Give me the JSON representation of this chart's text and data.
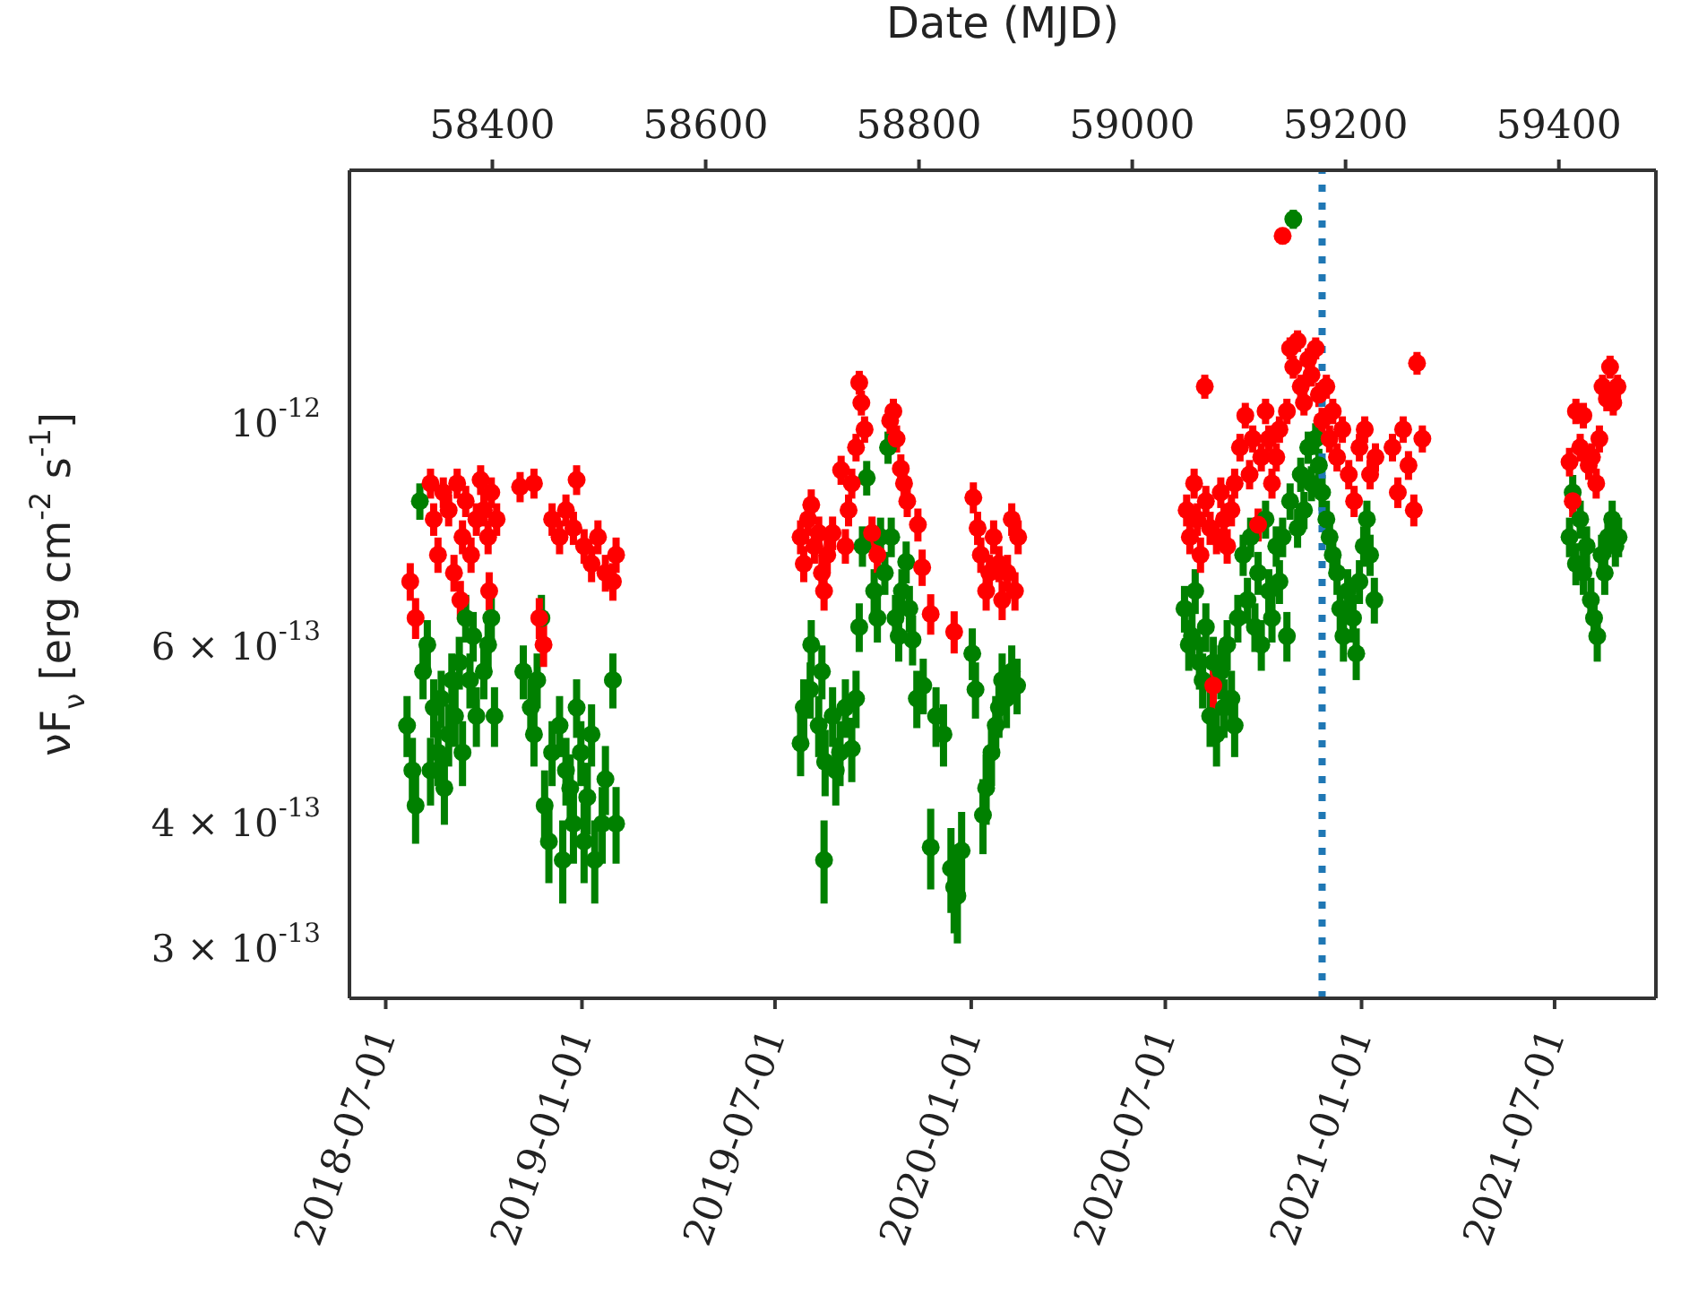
{
  "chart_data": {
    "type": "scatter",
    "x2label": "Date (MJD)",
    "ylabel": "νF$_{ν}$ [erg cm$^{-2}$ s$^{-1}$]",
    "xlim": [
      "2018-05-28",
      "2021-10-04"
    ],
    "xticks": [
      "2018-07-01",
      "2019-01-01",
      "2019-07-01",
      "2020-01-01",
      "2020-07-01",
      "2021-01-01",
      "2021-07-01"
    ],
    "x2lim": [
      58266,
      59491
    ],
    "x2ticks": [
      58400,
      58600,
      58800,
      59000,
      59200,
      59400
    ],
    "ylim": [
      2.68e-13,
      1.79e-12
    ],
    "yticks": [
      {
        "value": 3e-13,
        "label": "3 × 10$^{-13}$"
      },
      {
        "value": 4e-13,
        "label": "4 × 10$^{-13}$"
      },
      {
        "value": 6e-13,
        "label": "6 × 10$^{-13}$"
      },
      {
        "value": 1e-12,
        "label": "10$^{-12}$"
      }
    ],
    "log": true,
    "marker": "circle",
    "ref_lines": [
      {
        "axis": "x",
        "value": "2020-11-25",
        "color": "#1f77b4",
        "line_style": "dotted"
      }
    ],
    "series": [
      {
        "color": "#008000",
        "x": [
          "2018-07-21",
          "2018-07-26",
          "2018-07-29",
          "2018-08-02",
          "2018-08-05",
          "2018-08-09",
          "2018-08-12",
          "2018-08-15",
          "2018-08-19",
          "2018-08-22",
          "2018-08-25",
          "2018-08-29",
          "2018-09-01",
          "2018-09-04",
          "2018-09-08",
          "2018-09-11",
          "2018-09-14",
          "2018-09-18",
          "2018-09-21",
          "2018-09-24",
          "2018-09-28",
          "2018-10-01",
          "2018-10-05",
          "2018-10-08",
          "2018-10-11",
          "2018-11-07",
          "2018-11-14",
          "2018-11-17",
          "2018-11-20",
          "2018-11-24",
          "2018-11-27",
          "2018-12-01",
          "2018-12-04",
          "2018-12-11",
          "2018-12-14",
          "2018-12-17",
          "2018-12-21",
          "2018-12-24",
          "2018-12-27",
          "2018-12-31",
          "2019-01-03",
          "2019-01-06",
          "2019-01-10",
          "2019-01-13",
          "2019-01-20",
          "2019-01-23",
          "2019-01-26",
          "2019-01-30",
          "2019-02-02",
          "2019-07-25",
          "2019-07-28",
          "2019-08-01",
          "2019-08-03",
          "2019-08-04",
          "2019-08-07",
          "2019-08-11",
          "2019-08-14",
          "2019-08-16",
          "2019-08-17",
          "2019-08-21",
          "2019-08-24",
          "2019-08-27",
          "2019-08-31",
          "2019-09-05",
          "2019-09-08",
          "2019-09-11",
          "2019-09-15",
          "2019-09-18",
          "2019-09-21",
          "2019-09-25",
          "2019-09-28",
          "2019-10-02",
          "2019-10-05",
          "2019-10-08",
          "2019-10-12",
          "2019-10-15",
          "2019-10-18",
          "2019-10-22",
          "2019-10-25",
          "2019-10-28",
          "2019-11-01",
          "2019-11-04",
          "2019-11-07",
          "2019-11-11",
          "2019-11-17",
          "2019-11-24",
          "2019-11-29",
          "2019-12-06",
          "2019-12-13",
          "2019-12-16",
          "2019-12-19",
          "2019-12-23",
          "2020-01-02",
          "2020-01-05",
          "2020-01-12",
          "2020-01-15",
          "2020-01-20",
          "2020-01-24",
          "2020-01-27",
          "2020-01-30",
          "2020-02-03",
          "2020-02-08",
          "2020-02-13",
          "2020-07-19",
          "2020-07-23",
          "2020-07-26",
          "2020-07-29",
          "2020-08-02",
          "2020-08-05",
          "2020-08-08",
          "2020-08-12",
          "2020-08-15",
          "2020-08-18",
          "2020-08-22",
          "2020-08-25",
          "2020-08-28",
          "2020-09-01",
          "2020-09-04",
          "2020-09-07",
          "2020-09-12",
          "2020-09-16",
          "2020-09-19",
          "2020-09-23",
          "2020-09-26",
          "2020-09-29",
          "2020-10-03",
          "2020-10-06",
          "2020-10-09",
          "2020-10-13",
          "2020-10-16",
          "2020-10-19",
          "2020-10-23",
          "2020-10-26",
          "2020-10-29",
          "2020-11-02",
          "2020-11-05",
          "2020-11-08",
          "2020-11-12",
          "2020-11-15",
          "2020-11-19",
          "2020-11-22",
          "2020-11-25",
          "2020-11-29",
          "2020-12-02",
          "2020-12-05",
          "2020-12-09",
          "2020-12-12",
          "2020-12-15",
          "2020-12-19",
          "2020-12-24",
          "2020-12-27",
          "2020-12-30",
          "2021-01-03",
          "2021-01-06",
          "2021-01-09",
          "2021-01-13",
          "2021-07-15",
          "2021-07-18",
          "2021-07-21",
          "2021-07-25",
          "2021-07-28",
          "2021-07-31",
          "2021-08-04",
          "2021-08-07",
          "2021-08-10",
          "2021-08-14",
          "2021-08-17",
          "2021-08-20",
          "2021-08-24",
          "2021-08-27",
          "2021-08-30"
        ],
        "values": [
          5.01e-13,
          4.52e-13,
          4.17e-13,
          8.38e-13,
          5.67e-13,
          6.03e-13,
          4.52e-13,
          5.22e-13,
          4.71e-13,
          5.33e-13,
          4.34e-13,
          4.91e-13,
          5.56e-13,
          5.12e-13,
          5.79e-13,
          4.71e-13,
          6.41e-13,
          5.56e-13,
          6.15e-13,
          5.12e-13,
          null,
          5.67e-13,
          6.03e-13,
          6.41e-13,
          5.12e-13,
          5.67e-13,
          5.22e-13,
          4.91e-13,
          5.56e-13,
          6.41e-13,
          4.17e-13,
          3.84e-13,
          4.71e-13,
          5.01e-13,
          3.68e-13,
          4.52e-13,
          4.34e-13,
          4e-13,
          5.22e-13,
          4.71e-13,
          3.84e-13,
          4.25e-13,
          4.91e-13,
          3.68e-13,
          4e-13,
          4.43e-13,
          null,
          5.56e-13,
          4e-13,
          4.81e-13,
          5.22e-13,
          null,
          5.44e-13,
          6.03e-13,
          null,
          5.01e-13,
          5.67e-13,
          3.68e-13,
          4.61e-13,
          null,
          5.12e-13,
          4.52e-13,
          4.71e-13,
          5.22e-13,
          null,
          4.75e-13,
          5.33e-13,
          6.28e-13,
          7.56e-13,
          8.84e-13,
          null,
          6.82e-13,
          6.41e-13,
          7.72e-13,
          7.11e-13,
          9.48e-13,
          7.72e-13,
          6.41e-13,
          6.15e-13,
          6.82e-13,
          7.29e-13,
          6.55e-13,
          6.1e-13,
          5.33e-13,
          5.49e-13,
          3.79e-13,
          5.12e-13,
          4.91e-13,
          3.61e-13,
          3.46e-13,
          3.39e-13,
          3.76e-13,
          5.91e-13,
          5.44e-13,
          4.08e-13,
          4.34e-13,
          4.71e-13,
          5.01e-13,
          5.22e-13,
          5.56e-13,
          5.33e-13,
          5.67e-13,
          5.49e-13,
          6.55e-13,
          6.03e-13,
          6.15e-13,
          6.82e-13,
          5.79e-13,
          5.56e-13,
          6.28e-13,
          5.12e-13,
          5.79e-13,
          4.91e-13,
          5.67e-13,
          5.22e-13,
          6.03e-13,
          5.33e-13,
          5.01e-13,
          6.41e-13,
          7.41e-13,
          6.68e-13,
          7.72e-13,
          6.28e-13,
          7.11e-13,
          6.03e-13,
          8.04e-13,
          6.82e-13,
          6.41e-13,
          7.56e-13,
          6.97e-13,
          7.72e-13,
          6.15e-13,
          8.38e-13,
          1.6e-12,
          7.88e-13,
          8.91e-13,
          8.21e-13,
          9.48e-13,
          8.73e-13,
          9.67e-13,
          9.1e-13,
          8.55e-13,
          8.04e-13,
          7.72e-13,
          7.41e-13,
          7.11e-13,
          6.55e-13,
          6.15e-13,
          6.82e-13,
          6.41e-13,
          5.91e-13,
          6.97e-13,
          7.56e-13,
          8.04e-13,
          7.41e-13,
          6.68e-13,
          7.72e-13,
          8.55e-13,
          7.26e-13,
          8.04e-13,
          7.11e-13,
          7.56e-13,
          6.68e-13,
          6.41e-13,
          6.15e-13,
          7.41e-13,
          7.11e-13,
          7.72e-13,
          8.04e-13,
          7.56e-13,
          7.72e-13
        ],
        "errors": [
          3.5e-14,
          3.5e-14,
          3.5e-14,
          3.5e-14,
          3.5e-14,
          3.5e-14,
          3.5e-14,
          3.5e-14,
          3.5e-14,
          3.5e-14,
          3.5e-14,
          3.5e-14,
          3.5e-14,
          3.5e-14,
          3.5e-14,
          3.5e-14,
          3.5e-14,
          3.5e-14,
          3.5e-14,
          3.5e-14,
          null,
          3.5e-14,
          3.5e-14,
          3.5e-14,
          3.5e-14,
          3.5e-14,
          3.5e-14,
          3.5e-14,
          3.5e-14,
          3.5e-14,
          3.5e-14,
          3.5e-14,
          3.5e-14,
          3.5e-14,
          3.5e-14,
          3.5e-14,
          3.5e-14,
          3.5e-14,
          3.5e-14,
          3.5e-14,
          3.5e-14,
          3.5e-14,
          3.5e-14,
          3.5e-14,
          3.5e-14,
          3.5e-14,
          null,
          3.5e-14,
          3.5e-14,
          3.5e-14,
          3.5e-14,
          null,
          3.5e-14,
          3.5e-14,
          null,
          3.5e-14,
          3.5e-14,
          3.5e-14,
          3.5e-14,
          null,
          3.5e-14,
          3.5e-14,
          3.5e-14,
          3.5e-14,
          null,
          3.5e-14,
          3.5e-14,
          3.5e-14,
          3.5e-14,
          3.5e-14,
          null,
          3.5e-14,
          3.5e-14,
          3.5e-14,
          3.5e-14,
          3.5e-14,
          3.5e-14,
          3.5e-14,
          3.5e-14,
          3.5e-14,
          3.5e-14,
          3.5e-14,
          3.5e-14,
          3.5e-14,
          3.5e-14,
          3.5e-14,
          3.5e-14,
          3.5e-14,
          3.5e-14,
          3.5e-14,
          3.5e-14,
          3.5e-14,
          3.5e-14,
          3.5e-14,
          3.5e-14,
          3.5e-14,
          3.5e-14,
          3.5e-14,
          3.5e-14,
          3.5e-14,
          3.5e-14,
          3.5e-14,
          3.5e-14,
          3.5e-14,
          3.5e-14,
          3.5e-14,
          3.5e-14,
          3.5e-14,
          3.5e-14,
          3.5e-14,
          3.5e-14,
          3.5e-14,
          3.5e-14,
          3.5e-14,
          3.5e-14,
          3.5e-14,
          3.5e-14,
          3.5e-14,
          3.5e-14,
          3.5e-14,
          3.5e-14,
          3.5e-14,
          3.5e-14,
          3.5e-14,
          3.5e-14,
          3.5e-14,
          3.5e-14,
          3.5e-14,
          3.5e-14,
          3.5e-14,
          3.5e-14,
          3.5e-14,
          3.5e-14,
          3.5e-14,
          3.5e-14,
          3.5e-14,
          3.5e-14,
          3.5e-14,
          3.5e-14,
          3.5e-14,
          3.5e-14,
          3.5e-14,
          3.5e-14,
          3.5e-14,
          3.5e-14,
          3.5e-14,
          3.5e-14,
          3.5e-14,
          3.5e-14,
          3.5e-14,
          3.5e-14,
          3.5e-14,
          3.5e-14,
          3.5e-14,
          3.5e-14,
          3.5e-14,
          3.5e-14,
          3.5e-14,
          3.5e-14,
          3.5e-14,
          3.5e-14,
          3.5e-14,
          3.5e-14,
          3.5e-14,
          3.5e-14,
          3.5e-14,
          3.5e-14,
          3.5e-14,
          3.5e-14,
          3.5e-14,
          3.5e-14
        ]
      },
      {
        "color": "#ff0000",
        "x": [
          "2018-07-24",
          "2018-07-29",
          "2018-08-09",
          "2018-08-12",
          "2018-08-15",
          "2018-08-19",
          "2018-08-24",
          "2018-08-29",
          "2018-09-03",
          "2018-09-06",
          "2018-09-09",
          "2018-09-11",
          "2018-09-14",
          "2018-09-19",
          "2018-09-24",
          "2018-09-28",
          "2018-10-01",
          "2018-10-05",
          "2018-10-06",
          "2018-10-08",
          "2018-10-13",
          "2018-11-04",
          "2018-11-17",
          "2018-11-22",
          "2018-11-26",
          "2018-12-04",
          "2018-12-11",
          "2018-12-17",
          "2018-12-24",
          "2018-12-27",
          "2019-01-03",
          "2019-01-10",
          "2019-01-16",
          "2019-01-23",
          "2019-01-30",
          "2019-02-02",
          "2019-07-25",
          "2019-07-28",
          "2019-08-01",
          "2019-08-04",
          "2019-08-07",
          "2019-08-11",
          "2019-08-14",
          "2019-08-16",
          "2019-08-19",
          "2019-08-24",
          "2019-08-29",
          "2019-09-01",
          "2019-09-05",
          "2019-09-08",
          "2019-09-11",
          "2019-09-15",
          "2019-09-18",
          "2019-09-20",
          "2019-09-23",
          "2019-09-30",
          "2019-10-05",
          "2019-10-12",
          "2019-10-17",
          "2019-10-20",
          "2019-10-23",
          "2019-10-27",
          "2019-10-30",
          "2019-11-02",
          "2019-11-07",
          "2019-11-12",
          "2019-11-16",
          "2019-11-24",
          "2019-12-16",
          "2020-01-03",
          "2020-01-07",
          "2020-01-10",
          "2020-01-15",
          "2020-01-18",
          "2020-01-22",
          "2020-01-27",
          "2020-01-30",
          "2020-02-04",
          "2020-02-08",
          "2020-02-11",
          "2020-02-14",
          "2020-07-21",
          "2020-07-24",
          "2020-07-28",
          "2020-07-31",
          "2020-08-03",
          "2020-08-07",
          "2020-08-08",
          "2020-08-12",
          "2020-08-15",
          "2020-08-18",
          "2020-08-22",
          "2020-08-25",
          "2020-08-28",
          "2020-09-01",
          "2020-09-04",
          "2020-09-09",
          "2020-09-14",
          "2020-09-18",
          "2020-09-21",
          "2020-09-26",
          "2020-09-29",
          "2020-10-03",
          "2020-10-06",
          "2020-10-09",
          "2020-10-13",
          "2020-10-16",
          "2020-10-19",
          "2020-10-23",
          "2020-10-26",
          "2020-10-29",
          "2020-11-02",
          "2020-11-05",
          "2020-11-08",
          "2020-11-12",
          "2020-11-15",
          "2020-11-19",
          "2020-11-22",
          "2020-11-25",
          "2020-11-29",
          "2020-12-02",
          "2020-12-05",
          "2020-12-09",
          "2020-12-14",
          "2020-12-20",
          "2020-12-25",
          "2020-12-30",
          "2021-01-04",
          "2021-01-09",
          "2021-01-14",
          "2021-01-30",
          "2021-02-04",
          "2021-02-09",
          "2021-02-14",
          "2021-02-19",
          "2021-02-22",
          "2021-02-27",
          "2021-07-15",
          "2021-07-18",
          "2021-07-21",
          "2021-07-25",
          "2021-07-28",
          "2021-08-02",
          "2021-08-05",
          "2021-08-09",
          "2021-08-12",
          "2021-08-15",
          "2021-08-19",
          "2021-08-22",
          "2021-08-25",
          "2021-08-29"
        ],
        "values": [
          6.97e-13,
          6.41e-13,
          null,
          8.73e-13,
          8.04e-13,
          7.41e-13,
          8.55e-13,
          8.21e-13,
          7.11e-13,
          8.73e-13,
          6.68e-13,
          7.72e-13,
          8.38e-13,
          7.41e-13,
          8.04e-13,
          8.8e-13,
          8.21e-13,
          7.72e-13,
          6.82e-13,
          8.55e-13,
          8.04e-13,
          8.66e-13,
          8.73e-13,
          6.41e-13,
          6.03e-13,
          8.04e-13,
          7.72e-13,
          8.21e-13,
          7.88e-13,
          8.8e-13,
          7.56e-13,
          7.26e-13,
          7.72e-13,
          7.11e-13,
          6.97e-13,
          7.41e-13,
          7.72e-13,
          7.26e-13,
          8.04e-13,
          8.31e-13,
          7.56e-13,
          7.79e-13,
          7.11e-13,
          6.82e-13,
          7.41e-13,
          7.79e-13,
          null,
          9e-13,
          7.56e-13,
          8.21e-13,
          8.73e-13,
          9.48e-13,
          1.1e-12,
          1.05e-12,
          9.88e-13,
          7.79e-13,
          7.41e-13,
          null,
          1.008e-12,
          1.03e-12,
          9.67e-13,
          9.03e-13,
          8.73e-13,
          8.38e-13,
          null,
          7.94e-13,
          7.2e-13,
          6.47e-13,
          6.21e-13,
          8.45e-13,
          7.88e-13,
          7.41e-13,
          6.82e-13,
          7.11e-13,
          7.72e-13,
          7.26e-13,
          6.68e-13,
          7.11e-13,
          8.04e-13,
          6.82e-13,
          7.72e-13,
          8.21e-13,
          7.72e-13,
          8.73e-13,
          8.04e-13,
          7.41e-13,
          1.09e-12,
          8.38e-13,
          7.88e-13,
          5.49e-13,
          7.72e-13,
          8.55e-13,
          8.04e-13,
          7.56e-13,
          8.21e-13,
          8.73e-13,
          9.48e-13,
          1.02e-12,
          8.91e-13,
          9.67e-13,
          7.94e-13,
          9.27e-13,
          1.03e-12,
          9.67e-13,
          8.73e-13,
          9.27e-13,
          9.88e-13,
          1.54e-12,
          1.03e-12,
          1.19e-12,
          1.14e-12,
          1.21e-12,
          1.09e-12,
          1.05e-12,
          1.16e-12,
          1.12e-12,
          1.19e-12,
          1.07e-12,
          1.008e-12,
          1.09e-12,
          9.67e-13,
          1.03e-12,
          9.27e-13,
          9.88e-13,
          8.91e-13,
          8.38e-13,
          9.48e-13,
          9.88e-13,
          8.91e-13,
          9.27e-13,
          9.48e-13,
          8.55e-13,
          9.88e-13,
          9.1e-13,
          8.21e-13,
          1.15e-12,
          9.67e-13,
          9.17e-13,
          8.38e-13,
          1.03e-12,
          9.48e-13,
          1.02e-12,
          9.1e-13,
          9.27e-13,
          8.73e-13,
          9.67e-13,
          1.09e-12,
          1.06e-12,
          1.14e-12,
          1.05e-12,
          1.09e-12
        ],
        "errors": [
          3e-14,
          3e-14,
          null,
          3e-14,
          3e-14,
          3e-14,
          3e-14,
          3e-14,
          3e-14,
          3e-14,
          3e-14,
          3e-14,
          3e-14,
          3e-14,
          3e-14,
          3e-14,
          3e-14,
          3e-14,
          3e-14,
          3e-14,
          3e-14,
          3e-14,
          3e-14,
          3e-14,
          3e-14,
          3e-14,
          3e-14,
          3e-14,
          3e-14,
          3e-14,
          3e-14,
          3e-14,
          3e-14,
          3e-14,
          3e-14,
          3e-14,
          3e-14,
          3e-14,
          3e-14,
          3e-14,
          3e-14,
          3e-14,
          3e-14,
          3e-14,
          3e-14,
          3e-14,
          null,
          3e-14,
          3e-14,
          3e-14,
          3e-14,
          3e-14,
          3e-14,
          3e-14,
          3e-14,
          3e-14,
          3e-14,
          null,
          3e-14,
          3e-14,
          3e-14,
          3e-14,
          3e-14,
          3e-14,
          null,
          3e-14,
          3e-14,
          3e-14,
          3e-14,
          3e-14,
          3e-14,
          3e-14,
          3e-14,
          3e-14,
          3e-14,
          3e-14,
          3e-14,
          3e-14,
          3e-14,
          3e-14,
          3e-14,
          3e-14,
          3e-14,
          3e-14,
          3e-14,
          3e-14,
          3e-14,
          3e-14,
          3e-14,
          3e-14,
          3e-14,
          3e-14,
          3e-14,
          3e-14,
          3e-14,
          3e-14,
          3e-14,
          3e-14,
          3e-14,
          3e-14,
          3e-14,
          3e-14,
          3e-14,
          3e-14,
          3e-14,
          3e-14,
          3e-14,
          3e-14,
          3e-14,
          3e-14,
          3e-14,
          3e-14,
          3e-14,
          3e-14,
          3e-14,
          3e-14,
          3e-14,
          3e-14,
          3e-14,
          3e-14,
          3e-14,
          3e-14,
          3e-14,
          3e-14,
          3e-14,
          3e-14,
          3e-14,
          3e-14,
          3e-14,
          3e-14,
          3e-14,
          3e-14,
          3e-14,
          3e-14,
          3e-14,
          3e-14,
          3e-14,
          3e-14,
          3e-14,
          3e-14,
          3e-14,
          3e-14,
          3e-14,
          3e-14,
          3e-14,
          3e-14,
          3e-14,
          3e-14,
          3e-14,
          3e-14,
          3e-14
        ]
      }
    ]
  }
}
